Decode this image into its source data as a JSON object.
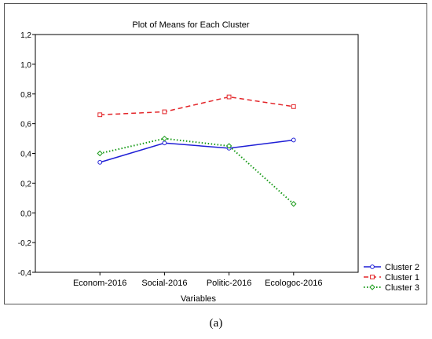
{
  "caption": "(a)",
  "chart_data": {
    "type": "line",
    "title": "Plot of Means for Each Cluster",
    "xlabel": "Variables",
    "ylabel": "",
    "categories": [
      "Econom-2016",
      "Social-2016",
      "Politic-2016",
      "Ecologoc-2016"
    ],
    "ylim": [
      -0.4,
      1.2
    ],
    "yticks": [
      1.2,
      1.0,
      0.8,
      0.6,
      0.4,
      0.2,
      0.0,
      -0.2,
      -0.4
    ],
    "ytick_labels": [
      "1,2",
      "1,0",
      "0,8",
      "0,6",
      "0,4",
      "0,2",
      "0,0",
      "-0,2",
      "-0,4"
    ],
    "grid": false,
    "legend_position": "bottom-right",
    "series": [
      {
        "name": "Cluster 2",
        "values": [
          0.34,
          0.47,
          0.435,
          0.49
        ],
        "color": "#1f1fd6",
        "dash": "solid",
        "marker": "circle"
      },
      {
        "name": "Cluster 1",
        "values": [
          0.66,
          0.68,
          0.78,
          0.715
        ],
        "color": "#e3262a",
        "dash": "dashed",
        "marker": "square"
      },
      {
        "name": "Cluster 3",
        "values": [
          0.4,
          0.5,
          0.45,
          0.06
        ],
        "color": "#169a16",
        "dash": "dotted",
        "marker": "diamond"
      }
    ]
  }
}
